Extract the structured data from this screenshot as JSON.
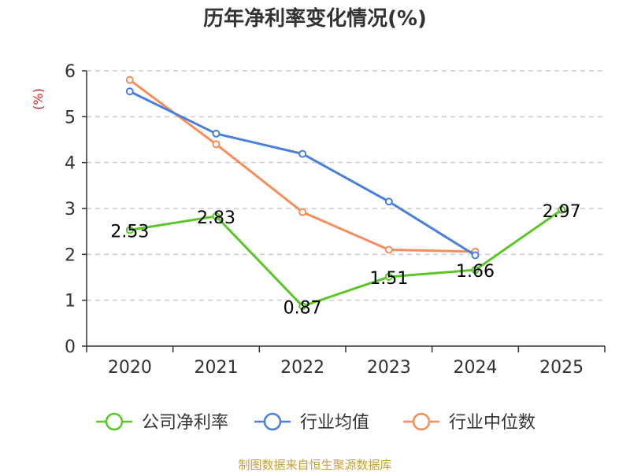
{
  "chart_data": {
    "type": "line",
    "title": "历年净利率变化情况(%)",
    "ylabel": "(%)",
    "xlabel": "",
    "categories": [
      "2020",
      "2021",
      "2022",
      "2023",
      "2024",
      "2025"
    ],
    "ylim": [
      0,
      6
    ],
    "yticks": [
      0,
      1,
      2,
      3,
      4,
      5,
      6
    ],
    "grid": true,
    "legend_position": "bottom",
    "series": [
      {
        "name": "公司净利率",
        "color": "#5bc52a",
        "values": [
          2.53,
          2.83,
          0.87,
          1.51,
          1.66,
          2.97
        ],
        "labels": [
          "2.53",
          "2.83",
          "0.87",
          "1.51",
          "1.66",
          "2.97"
        ]
      },
      {
        "name": "行业均值",
        "color": "#4a7fdc",
        "values": [
          5.55,
          4.63,
          4.19,
          3.15,
          1.98,
          null
        ]
      },
      {
        "name": "行业中位数",
        "color": "#f58d5c",
        "values": [
          5.8,
          4.4,
          2.92,
          2.1,
          2.06,
          null
        ]
      }
    ]
  },
  "source": "制图数据来自恒生聚源数据库",
  "colors": {
    "unit": "#e02020",
    "source": "#c8a038",
    "axis": "#333333",
    "grid": "#cccccc"
  }
}
